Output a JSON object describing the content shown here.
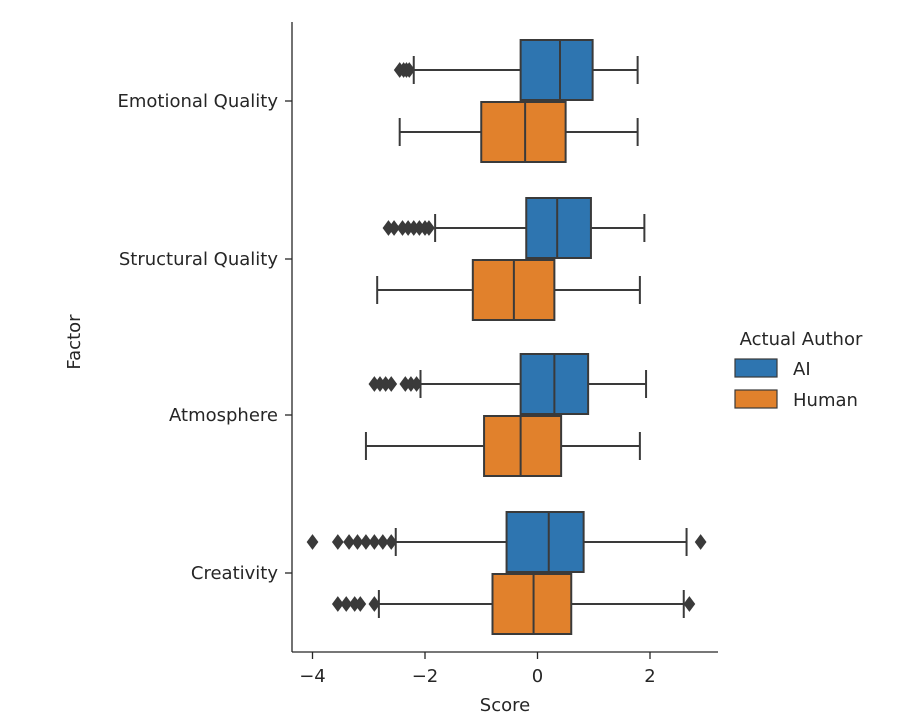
{
  "chart_data": {
    "type": "boxplot",
    "orientation": "horizontal",
    "xlabel": "Score",
    "ylabel": "Factor",
    "xlim": [
      -4.35,
      3.2
    ],
    "xticks": [
      -4,
      -2,
      0,
      2
    ],
    "xtick_labels": [
      "−4",
      "−2",
      "0",
      "2"
    ],
    "categories": [
      "Emotional Quality",
      "Structural Quality",
      "Atmosphere",
      "Creativity"
    ],
    "legend": {
      "title": "Actual Author",
      "placement": "right"
    },
    "grid": false,
    "series": [
      {
        "name": "AI",
        "color": "#2E75B0",
        "boxes": [
          {
            "category": "Emotional Quality",
            "whislo": -2.2,
            "q1": -0.3,
            "med": 0.4,
            "q3": 0.98,
            "whishi": 1.78,
            "fliers": [
              -2.45,
              -2.38,
              -2.33,
              -2.28
            ]
          },
          {
            "category": "Structural Quality",
            "whislo": -1.82,
            "q1": -0.2,
            "med": 0.35,
            "q3": 0.95,
            "whishi": 1.9,
            "fliers": [
              -2.65,
              -2.55,
              -2.4,
              -2.3,
              -2.2,
              -2.1,
              -2.0,
              -1.93
            ]
          },
          {
            "category": "Atmosphere",
            "whislo": -2.08,
            "q1": -0.3,
            "med": 0.3,
            "q3": 0.9,
            "whishi": 1.93,
            "fliers": [
              -2.9,
              -2.8,
              -2.7,
              -2.6,
              -2.35,
              -2.25,
              -2.15
            ]
          },
          {
            "category": "Creativity",
            "whislo": -2.52,
            "q1": -0.55,
            "med": 0.2,
            "q3": 0.82,
            "whishi": 2.65,
            "fliers": [
              -4.0,
              -3.55,
              -3.35,
              -3.2,
              -3.05,
              -2.9,
              -2.75,
              -2.6,
              2.9
            ]
          }
        ]
      },
      {
        "name": "Human",
        "color": "#E1812C",
        "boxes": [
          {
            "category": "Emotional Quality",
            "whislo": -2.45,
            "q1": -1.0,
            "med": -0.22,
            "q3": 0.5,
            "whishi": 1.78,
            "fliers": []
          },
          {
            "category": "Structural Quality",
            "whislo": -2.85,
            "q1": -1.15,
            "med": -0.42,
            "q3": 0.3,
            "whishi": 1.82,
            "fliers": []
          },
          {
            "category": "Atmosphere",
            "whislo": -3.05,
            "q1": -0.95,
            "med": -0.3,
            "q3": 0.42,
            "whishi": 1.82,
            "fliers": []
          },
          {
            "category": "Creativity",
            "whislo": -2.82,
            "q1": -0.8,
            "med": -0.07,
            "q3": 0.6,
            "whishi": 2.6,
            "fliers": [
              -3.55,
              -3.4,
              -3.25,
              -3.15,
              -2.9,
              2.7
            ]
          }
        ]
      }
    ]
  }
}
